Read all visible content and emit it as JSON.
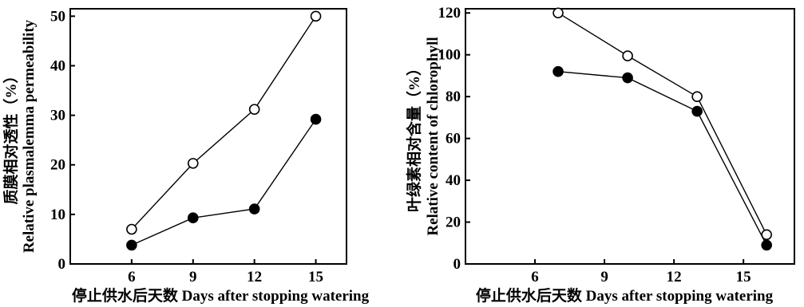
{
  "chart_data": [
    {
      "type": "line",
      "xlabel": "停止供水后天数 Days after stopping watering",
      "ylabel_lines": [
        "质膜相对透性（%）",
        "Relative  plasmalemma  permeability"
      ],
      "xlim": [
        3,
        16.5
      ],
      "ylim": [
        0,
        51.5
      ],
      "xticks": [
        6,
        9,
        12,
        15
      ],
      "yticks": [
        0,
        10,
        20,
        30,
        40,
        50
      ],
      "series": [
        {
          "marker": "open-circle",
          "x": [
            6,
            9,
            12,
            15
          ],
          "y": [
            7,
            20.3,
            31.2,
            50
          ]
        },
        {
          "marker": "filled-circle",
          "x": [
            6,
            9,
            12,
            15
          ],
          "y": [
            3.8,
            9.3,
            11.1,
            29.2
          ]
        }
      ]
    },
    {
      "type": "line",
      "xlabel": "停止供水后天数 Days after stopping watering",
      "ylabel_lines": [
        "叶绿素相对含量（%）",
        "Relative  content  of  chlorophyll"
      ],
      "xlim": [
        3,
        17.2
      ],
      "ylim": [
        0,
        122
      ],
      "xticks": [
        6,
        9,
        12,
        15
      ],
      "yticks": [
        0,
        20,
        40,
        60,
        80,
        100,
        120
      ],
      "series": [
        {
          "marker": "open-circle",
          "x": [
            7,
            10,
            13,
            16
          ],
          "y": [
            120,
            99.5,
            80,
            14
          ]
        },
        {
          "marker": "filled-circle",
          "x": [
            7,
            10,
            13,
            16
          ],
          "y": [
            92,
            89,
            73,
            9
          ]
        }
      ]
    }
  ]
}
